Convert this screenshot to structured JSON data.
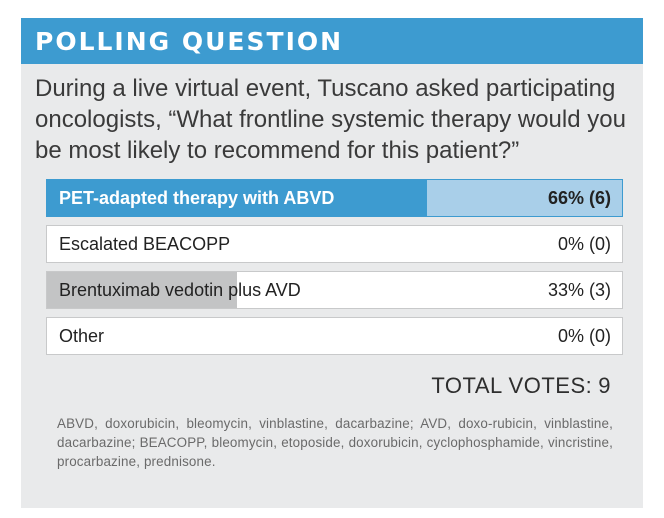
{
  "header": {
    "title": "POLLING QUESTION"
  },
  "question": "During a live virtual event, Tuscano asked participating oncologists, “What frontline systemic therapy would you be most likely to recommend for this patient?”",
  "chart_data": {
    "type": "bar",
    "categories": [
      "PET-adapted therapy with ABVD",
      "Escalated BEACOPP",
      "Brentuximab vedotin plus AVD",
      "Other"
    ],
    "values": [
      66,
      0,
      33,
      0
    ],
    "counts": [
      6,
      0,
      3,
      0
    ],
    "value_labels": [
      "66% (6)",
      "0% (0)",
      "33% (3)",
      "0% (0)"
    ],
    "selected_index": 0,
    "xlim": [
      0,
      100
    ],
    "colors": {
      "selected_fill": "#3d9bd0",
      "selected_track": "#a9cfe9",
      "other_fill": "#c3c4c5",
      "header": "#3d9bd0"
    }
  },
  "total": {
    "label": "TOTAL VOTES:",
    "value": "9"
  },
  "footnote": "ABVD, doxorubicin, bleomycin, vinblastine, dacarbazine; AVD, doxo-rubicin, vinblastine, dacarbazine; BEACOPP, bleomycin, etoposide, doxorubicin, cyclophosphamide, vincristine, procarbazine, prednisone."
}
